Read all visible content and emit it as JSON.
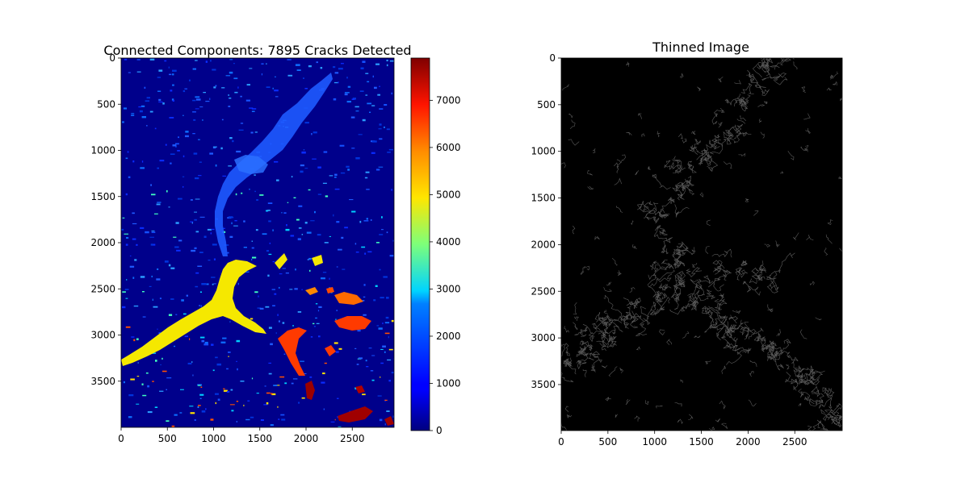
{
  "chart_data": [
    {
      "type": "heatmap",
      "title": "Connected Components: 7895 Cracks Detected",
      "colormap": "jet",
      "x_ticks": [
        0,
        500,
        1000,
        1500,
        2000,
        2500
      ],
      "y_ticks": [
        0,
        500,
        1000,
        1500,
        2000,
        2500,
        3000,
        3500
      ],
      "xlim": [
        0,
        3000
      ],
      "ylim": [
        4000,
        0
      ],
      "colorbar": {
        "range": [
          0,
          7895
        ],
        "ticks": [
          0,
          1000,
          2000,
          3000,
          4000,
          5000,
          6000,
          7000
        ]
      },
      "background_color": "#00008b",
      "regions": [
        {
          "name": "main-yellow-branch",
          "color": "#f5e800"
        },
        {
          "name": "upper-blue-channel",
          "color": "#1e5aff"
        },
        {
          "name": "red-lower-right",
          "color": "#ff3a00"
        },
        {
          "name": "darkred-bottom",
          "color": "#9b0000"
        }
      ]
    },
    {
      "type": "heatmap",
      "title": "Thinned Image",
      "colormap": "gray",
      "x_ticks": [
        0,
        500,
        1000,
        1500,
        2000,
        2500
      ],
      "y_ticks": [
        0,
        500,
        1000,
        1500,
        2000,
        2500,
        3000,
        3500
      ],
      "xlim": [
        0,
        3000
      ],
      "ylim": [
        4000,
        0
      ],
      "background_color": "#000000"
    }
  ]
}
